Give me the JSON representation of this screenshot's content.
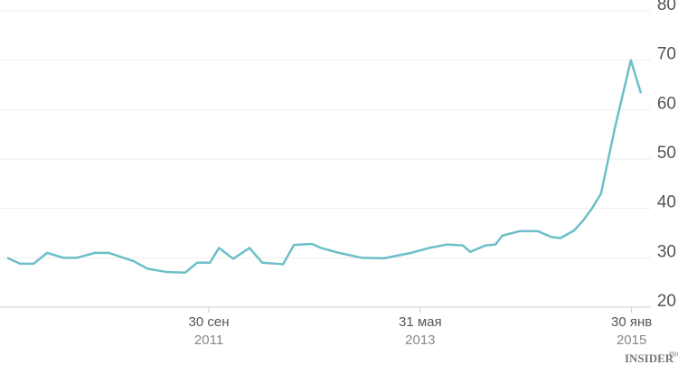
{
  "chart_data": {
    "type": "line",
    "x": [
      "2010-02-26",
      "2010-04-04",
      "2010-05-13",
      "2010-06-21",
      "2010-08-07",
      "2010-09-15",
      "2010-11-06",
      "2010-12-15",
      "2011-02-26",
      "2011-04-06",
      "2011-06-02",
      "2011-07-24",
      "2011-08-27",
      "2011-10-03",
      "2011-10-29",
      "2011-12-09",
      "2012-01-25",
      "2012-03-02",
      "2012-05-01",
      "2012-06-01",
      "2012-07-23",
      "2012-08-18",
      "2012-10-09",
      "2012-12-13",
      "2013-02-16",
      "2013-05-05",
      "2013-06-26",
      "2013-08-18",
      "2013-10-01",
      "2013-10-22",
      "2013-12-05",
      "2014-01-03",
      "2014-01-23",
      "2014-03-14",
      "2014-05-05",
      "2014-06-13",
      "2014-07-09",
      "2014-08-17",
      "2014-09-12",
      "2014-10-08",
      "2014-11-03",
      "2014-12-12",
      "2015-01-28",
      "2015-02-26"
    ],
    "series": [
      {
        "color": "#6cbfc8",
        "values": [
          30,
          28.8,
          28.8,
          31,
          30,
          30,
          31,
          31,
          29.3,
          27.8,
          27.1,
          27,
          29,
          29,
          32,
          29.8,
          32,
          29,
          28.7,
          32.6,
          32.8,
          32,
          31,
          30,
          29.9,
          31,
          32,
          32.7,
          32.5,
          31.2,
          32.5,
          32.7,
          34.5,
          35.4,
          35.4,
          34.2,
          34,
          35.5,
          37.5,
          40,
          43,
          56,
          70,
          63.3
        ]
      }
    ],
    "xlim": [
      "2010-02-26",
      "2015-02-26"
    ],
    "xticks": [
      {
        "value": "2011-09-30",
        "label": "30 сен",
        "year": "2011"
      },
      {
        "value": "2013-05-31",
        "label": "31 мая",
        "year": "2013"
      },
      {
        "value": "2015-01-30",
        "label": "30 янв",
        "year": "2015"
      }
    ],
    "ylim": [
      20,
      80
    ],
    "yticks": [
      20,
      30,
      40,
      50,
      60,
      70,
      80
    ],
    "grid": true,
    "watermark": "INSIDER",
    "watermark_sup": "PRO"
  }
}
